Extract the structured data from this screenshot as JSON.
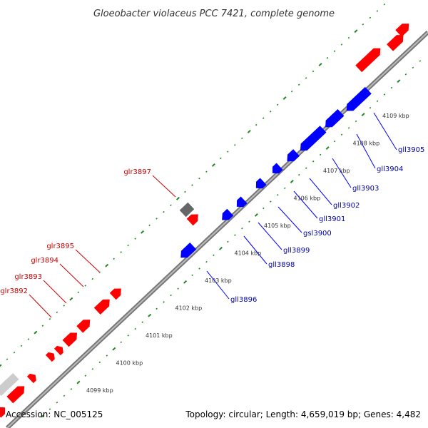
{
  "title": "Gloeobacter violaceus PCC 7421, complete genome",
  "footer": {
    "accession": "Accession: NC_005125",
    "summary": "Topology: circular; Length: 4,659,019 bp; Genes: 4,482"
  },
  "colors": {
    "forward_gene": "#ff0000",
    "reverse_gene": "#0000ff",
    "other_gene": "#666666",
    "light_gene": "#cccccc",
    "backbone": "#888888",
    "ticks": "#228822",
    "forward_label": "#cc0000",
    "reverse_label": "#0000aa"
  },
  "kbp_labels": [
    "4099 kbp",
    "4100 kbp",
    "4101 kbp",
    "4102 kbp",
    "4103 kbp",
    "4104 kbp",
    "4105 kbp",
    "4106 kbp",
    "4107 kbp",
    "4108 kbp",
    "4109 kbp"
  ],
  "forward_labels": [
    "glr3897",
    "glr3895",
    "glr3894",
    "glr3893",
    "glr3892"
  ],
  "reverse_labels": [
    "gll3905",
    "gll3904",
    "gll3903",
    "gll3902",
    "gll3901",
    "gsl3900",
    "gll3899",
    "gll3898",
    "gll3896"
  ]
}
